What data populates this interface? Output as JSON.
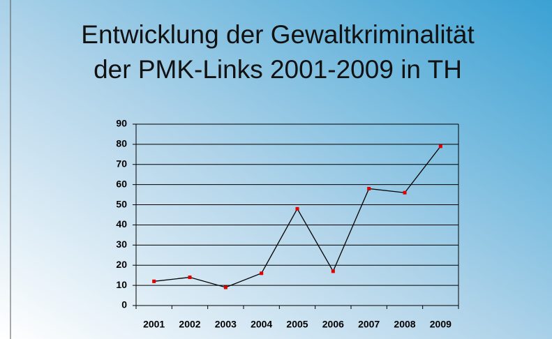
{
  "chart_data": {
    "type": "line",
    "title": [
      "Entwicklung der Gewaltkriminalität",
      "der PMK-Links 2001-2009 in TH"
    ],
    "categories": [
      "2001",
      "2002",
      "2003",
      "2004",
      "2005",
      "2006",
      "2007",
      "2008",
      "2009"
    ],
    "values": [
      12,
      14,
      9,
      16,
      48,
      17,
      58,
      56,
      79
    ],
    "color": "#000000",
    "marker_color": "#e00000",
    "ylim": [
      0,
      90
    ],
    "yticks": [
      0,
      10,
      20,
      30,
      40,
      50,
      60,
      70,
      80,
      90
    ],
    "grid": true
  }
}
